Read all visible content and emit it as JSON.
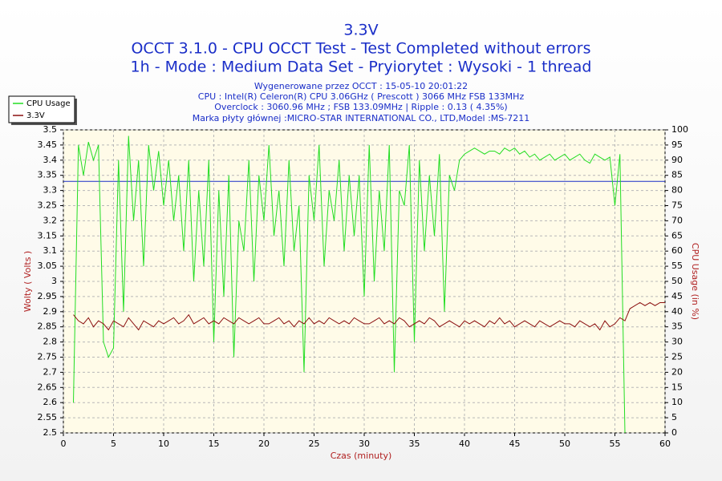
{
  "chart_data": {
    "type": "line",
    "title": "3.3V",
    "subtitle": [
      "OCCT 3.1.0 - CPU OCCT Test - Test Completed without errors",
      "1h - Mode : Medium Data Set - Pryiorytet : Wysoki - 1 thread"
    ],
    "info": [
      "Wygenerowane przez OCCT : 15-05-10 20:01:22",
      "CPU : Intel(R) Celeron(R) CPU 3.06GHz ( Prescott ) 3066 MHz FSB 133MHz",
      "Overclock : 3060.96 MHz ; FSB 133.09MHz | Ripple : 0.13 ( 4.35%)",
      "Marka płyty głównej :MICRO-STAR INTERNATIONAL CO., LTD,Model :MS-7211"
    ],
    "xlabel": "Czas (minuty)",
    "ylabel": "Wolty ( Volts )",
    "y2label": "CPU Usage (in %)",
    "legend": "top-left",
    "grid": true,
    "reference_line": {
      "value": 3.33,
      "color": "#1a2ec8"
    },
    "xlim": [
      0,
      60
    ],
    "xticks": [
      0,
      5,
      10,
      15,
      20,
      25,
      30,
      35,
      40,
      45,
      50,
      55,
      60
    ],
    "ylim": [
      2.5,
      3.5
    ],
    "yticks": [
      2.5,
      2.55,
      2.6,
      2.65,
      2.7,
      2.75,
      2.8,
      2.85,
      2.9,
      2.95,
      3,
      3.05,
      3.1,
      3.15,
      3.2,
      3.25,
      3.3,
      3.35,
      3.4,
      3.45,
      3.5
    ],
    "y2lim": [
      0,
      100
    ],
    "y2ticks": [
      0,
      5,
      10,
      15,
      20,
      25,
      30,
      35,
      40,
      45,
      50,
      55,
      60,
      65,
      70,
      75,
      80,
      85,
      90,
      95,
      100
    ],
    "x": [
      1,
      1.5,
      2,
      2.5,
      3,
      3.5,
      4,
      4.5,
      5,
      5.5,
      6,
      6.5,
      7,
      7.5,
      8,
      8.5,
      9,
      9.5,
      10,
      10.5,
      11,
      11.5,
      12,
      12.5,
      13,
      13.5,
      14,
      14.5,
      15,
      15.5,
      16,
      16.5,
      17,
      17.5,
      18,
      18.5,
      19,
      19.5,
      20,
      20.5,
      21,
      21.5,
      22,
      22.5,
      23,
      23.5,
      24,
      24.5,
      25,
      25.5,
      26,
      26.5,
      27,
      27.5,
      28,
      28.5,
      29,
      29.5,
      30,
      30.5,
      31,
      31.5,
      32,
      32.5,
      33,
      33.5,
      34,
      34.5,
      35,
      35.5,
      36,
      36.5,
      37,
      37.5,
      38,
      38.5,
      39,
      39.5,
      40,
      40.5,
      41,
      41.5,
      42,
      42.5,
      43,
      43.5,
      44,
      44.5,
      45,
      45.5,
      46,
      46.5,
      47,
      47.5,
      48,
      48.5,
      49,
      49.5,
      50,
      50.5,
      51,
      51.5,
      52,
      52.5,
      53,
      53.5,
      54,
      54.5,
      55,
      55.5,
      56,
      56.5,
      57,
      57.5,
      58,
      58.5,
      59,
      59.5,
      60
    ],
    "series": [
      {
        "name": "CPU Usage",
        "color": "#22dd22",
        "axis": "y2",
        "values": [
          10,
          95,
          85,
          96,
          90,
          95,
          30,
          25,
          28,
          90,
          40,
          98,
          70,
          90,
          55,
          95,
          80,
          93,
          75,
          90,
          70,
          85,
          60,
          90,
          50,
          80,
          55,
          90,
          30,
          80,
          45,
          85,
          25,
          70,
          60,
          90,
          50,
          85,
          70,
          95,
          65,
          80,
          55,
          90,
          60,
          75,
          20,
          85,
          70,
          95,
          55,
          80,
          70,
          90,
          60,
          85,
          65,
          85,
          45,
          95,
          50,
          80,
          60,
          95,
          20,
          80,
          75,
          95,
          30,
          90,
          60,
          85,
          65,
          92,
          40,
          85,
          80,
          90,
          92,
          93,
          94,
          93,
          92,
          93,
          93,
          92,
          94,
          93,
          94,
          92,
          93,
          91,
          92,
          90,
          91,
          92,
          90,
          91,
          92,
          90,
          91,
          92,
          90,
          89,
          92,
          91,
          90,
          91,
          75,
          92,
          0,
          null,
          null,
          null,
          null,
          null,
          null,
          null,
          null
        ]
      },
      {
        "name": "3.3V",
        "color": "#8b1010",
        "values": [
          2.89,
          2.87,
          2.86,
          2.88,
          2.85,
          2.87,
          2.86,
          2.84,
          2.87,
          2.86,
          2.85,
          2.88,
          2.86,
          2.84,
          2.87,
          2.86,
          2.85,
          2.87,
          2.86,
          2.87,
          2.88,
          2.86,
          2.87,
          2.89,
          2.86,
          2.87,
          2.88,
          2.86,
          2.87,
          2.86,
          2.88,
          2.87,
          2.86,
          2.88,
          2.87,
          2.86,
          2.87,
          2.88,
          2.86,
          2.86,
          2.87,
          2.88,
          2.86,
          2.87,
          2.85,
          2.87,
          2.86,
          2.88,
          2.86,
          2.87,
          2.86,
          2.88,
          2.87,
          2.86,
          2.87,
          2.86,
          2.88,
          2.87,
          2.86,
          2.86,
          2.87,
          2.88,
          2.86,
          2.87,
          2.86,
          2.88,
          2.87,
          2.85,
          2.86,
          2.87,
          2.86,
          2.88,
          2.87,
          2.85,
          2.86,
          2.87,
          2.86,
          2.85,
          2.87,
          2.86,
          2.87,
          2.86,
          2.85,
          2.87,
          2.86,
          2.88,
          2.86,
          2.87,
          2.85,
          2.86,
          2.87,
          2.86,
          2.85,
          2.87,
          2.86,
          2.85,
          2.86,
          2.87,
          2.86,
          2.86,
          2.85,
          2.87,
          2.86,
          2.85,
          2.86,
          2.84,
          2.87,
          2.85,
          2.86,
          2.88,
          2.87,
          2.91,
          2.92,
          2.93,
          2.92,
          2.93,
          2.92,
          2.93,
          2.93
        ]
      }
    ]
  }
}
